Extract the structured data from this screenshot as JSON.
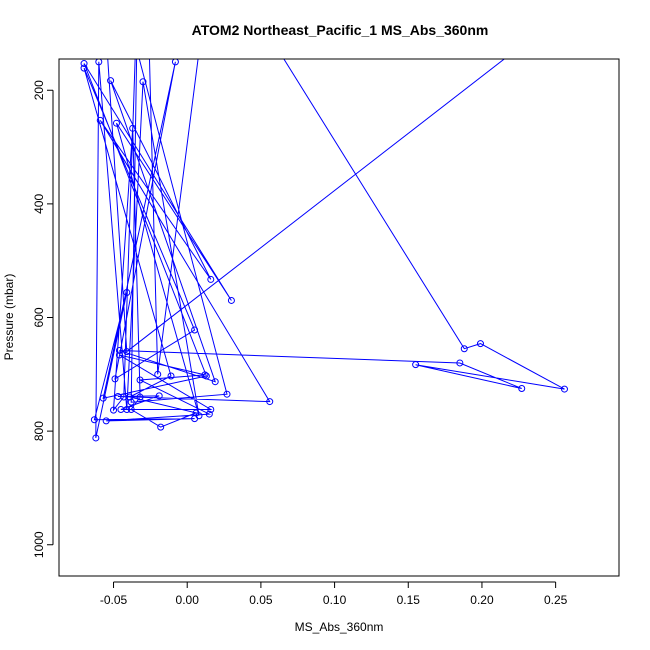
{
  "chart_data": {
    "type": "line",
    "title": "ATOM2 Northeast_Pacific_1 MS_Abs_360nm",
    "xlabel": "MS_Abs_360nm",
    "ylabel": "Pressure (mbar)",
    "xlim": [
      -0.087,
      0.293
    ],
    "ylim": [
      1055,
      145
    ],
    "y_inverted": true,
    "grid": false,
    "line_color": "#0000ff",
    "marker": "open-circle",
    "x_ticks": [
      {
        "value": -0.05,
        "label": "-0.05"
      },
      {
        "value": 0.0,
        "label": "0.00"
      },
      {
        "value": 0.05,
        "label": "0.05"
      },
      {
        "value": 0.1,
        "label": "0.10"
      },
      {
        "value": 0.15,
        "label": "0.15"
      },
      {
        "value": 0.2,
        "label": "0.20"
      },
      {
        "value": 0.25,
        "label": "0.25"
      }
    ],
    "y_ticks": [
      {
        "value": 200,
        "label": "200"
      },
      {
        "value": 400,
        "label": "400"
      },
      {
        "value": 600,
        "label": "600"
      },
      {
        "value": 800,
        "label": "800"
      },
      {
        "value": 1000,
        "label": "1000"
      }
    ],
    "series": [
      {
        "points": [
          {
            "x": 0.05,
            "y": 80
          },
          {
            "x": 0.188,
            "y": 655
          },
          {
            "x": 0.199,
            "y": 646
          },
          {
            "x": 0.256,
            "y": 726
          },
          {
            "x": 0.155,
            "y": 683
          },
          {
            "x": 0.227,
            "y": 725
          },
          {
            "x": 0.185,
            "y": 680
          },
          {
            "x": -0.046,
            "y": 658
          },
          {
            "x": 0.019,
            "y": 713
          },
          {
            "x": -0.052,
            "y": 183
          },
          {
            "x": 0.016,
            "y": 533
          },
          {
            "x": -0.059,
            "y": 253
          },
          {
            "x": 0.056,
            "y": 748
          },
          {
            "x": -0.047,
            "y": 739
          },
          {
            "x": -0.019,
            "y": 738
          },
          {
            "x": -0.045,
            "y": 762
          },
          {
            "x": 0.016,
            "y": 762
          },
          {
            "x": -0.046,
            "y": 666
          },
          {
            "x": 0.012,
            "y": 701
          },
          {
            "x": -0.032,
            "y": 710
          },
          {
            "x": 0.015,
            "y": 770
          },
          {
            "x": -0.055,
            "y": 782
          },
          {
            "x": 0.005,
            "y": 778
          },
          {
            "x": -0.063,
            "y": 780
          },
          {
            "x": -0.041,
            "y": 556
          },
          {
            "x": -0.062,
            "y": 812
          },
          {
            "x": -0.06,
            "y": 150
          },
          {
            "x": -0.041,
            "y": 762
          },
          {
            "x": -0.03,
            "y": 185
          },
          {
            "x": 0.008,
            "y": 773
          },
          {
            "x": -0.048,
            "y": 258
          },
          {
            "x": 0.03,
            "y": 570
          },
          {
            "x": -0.07,
            "y": 153
          },
          {
            "x": 0.013,
            "y": 703
          },
          {
            "x": -0.057,
            "y": 742
          },
          {
            "x": -0.008,
            "y": 150
          },
          {
            "x": -0.049,
            "y": 708
          },
          {
            "x": 0.005,
            "y": 622
          },
          {
            "x": -0.07,
            "y": 161
          },
          {
            "x": -0.011,
            "y": 703
          },
          {
            "x": -0.039,
            "y": 740
          },
          {
            "x": 0.006,
            "y": 768
          },
          {
            "x": -0.018,
            "y": 793
          },
          {
            "x": -0.038,
            "y": 762
          },
          {
            "x": -0.032,
            "y": 740
          },
          {
            "x": -0.037,
            "y": 267
          },
          {
            "x": -0.05,
            "y": 763
          },
          {
            "x": -0.043,
            "y": 740
          },
          {
            "x": -0.035,
            "y": 120
          },
          {
            "x": 0.027,
            "y": 735
          },
          {
            "x": -0.038,
            "y": 749
          },
          {
            "x": -0.034,
            "y": 88
          },
          {
            "x": -0.065,
            "y": 98
          },
          {
            "x": -0.026,
            "y": 105
          },
          {
            "x": -0.02,
            "y": 700
          },
          {
            "x": 0.01,
            "y": 92
          },
          {
            "x": -0.055,
            "y": 103
          },
          {
            "x": -0.041,
            "y": 660
          },
          {
            "x": 0.24,
            "y": 95
          }
        ]
      }
    ]
  }
}
